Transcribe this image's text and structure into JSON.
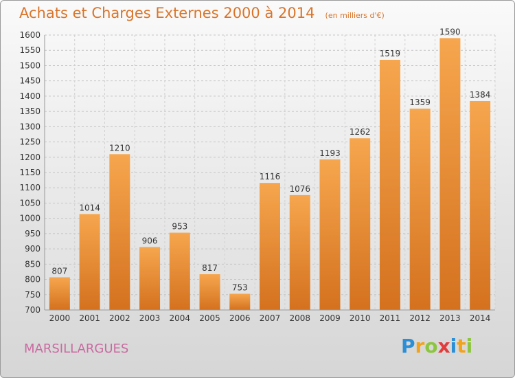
{
  "chart_data": {
    "type": "bar",
    "title": "Achats et Charges Externes 2000 à 2014",
    "subtitle": "(en milliers d'€)",
    "categories": [
      "2000",
      "2001",
      "2002",
      "2003",
      "2004",
      "2005",
      "2006",
      "2007",
      "2008",
      "2009",
      "2010",
      "2011",
      "2012",
      "2013",
      "2014"
    ],
    "values": [
      807,
      1014,
      1210,
      906,
      953,
      817,
      753,
      1116,
      1076,
      1193,
      1262,
      1519,
      1359,
      1590,
      1384
    ],
    "ylim": [
      700,
      1600
    ],
    "yticks": [
      700,
      750,
      800,
      850,
      900,
      950,
      1000,
      1050,
      1100,
      1150,
      1200,
      1250,
      1300,
      1350,
      1400,
      1450,
      1500,
      1550,
      1600
    ],
    "grid": true,
    "bar_color": "#f08a2c"
  },
  "commune": "MARSILLARGUES",
  "logo": {
    "letters": [
      "P",
      "r",
      "o",
      "x",
      "i",
      "t",
      "i"
    ],
    "colors": [
      "#2a8fd6",
      "#f2a31b",
      "#8cc63e",
      "#e23d3d",
      "#2a8fd6",
      "#f2a31b",
      "#8cc63e"
    ]
  }
}
